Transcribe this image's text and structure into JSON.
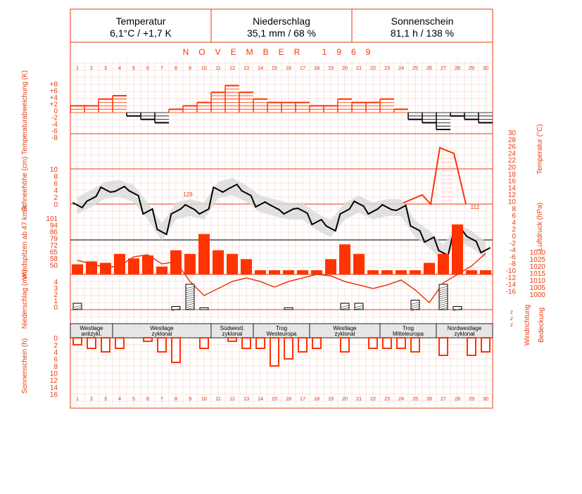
{
  "header": {
    "cells": [
      {
        "title": "Temperatur",
        "value": "6,1°C / +1,7 K"
      },
      {
        "title": "Niederschlag",
        "value": "35,1 mm / 68 %"
      },
      {
        "title": "Sonnenschein",
        "value": "81,1 h / 138 %"
      }
    ]
  },
  "month_title": "NOVEMBER 1969",
  "colors": {
    "accent": "#ff3300",
    "line": "#e83a10",
    "grid": "#f2c8c0",
    "black": "#000000",
    "band": "#d9d9d9"
  },
  "chart_data": {
    "type": "climate-diagram",
    "days": [
      1,
      2,
      3,
      4,
      5,
      6,
      7,
      8,
      9,
      10,
      11,
      12,
      13,
      14,
      15,
      16,
      17,
      18,
      19,
      20,
      21,
      22,
      23,
      24,
      25,
      26,
      27,
      28,
      29,
      30
    ],
    "left_axis_labels": {
      "temp_dev": "Temperaturabweichung (K)",
      "snow": "Schneehöhe (cm)",
      "wind": "Windspitzen ab 47 km/h",
      "precip": "Niederschlag (mm)",
      "sun": "Sonnenschein (h)"
    },
    "right_axis_labels": {
      "temperature": "Temperatur (°C)",
      "pressure": "Luftdruck (hPa)",
      "wind_dir": "Windrichtung",
      "cloud": "Bedeckung"
    },
    "temp_dev_ticks": [
      "+8",
      "+6",
      "+4",
      "+2",
      "0",
      "-2",
      "-4",
      "-6",
      "-8"
    ],
    "snow_ticks": [
      "10",
      "8",
      "6",
      "4",
      "2",
      "0"
    ],
    "wind_ticks": [
      "101",
      "94",
      "86",
      "79",
      "72",
      "65",
      "58",
      "50"
    ],
    "precip_ticks": [
      "4",
      "3",
      "2",
      "1",
      "0"
    ],
    "sun_ticks": [
      "0",
      "2",
      "4",
      "6",
      "8",
      "10",
      "12",
      "14",
      "16"
    ],
    "temp_ticks": [
      "30",
      "28",
      "26",
      "24",
      "22",
      "20",
      "18",
      "16",
      "14",
      "12",
      "10",
      "8",
      "6",
      "4",
      "2",
      "0",
      "-2",
      "-4",
      "-6",
      "-8",
      "-10",
      "-12",
      "-14",
      "-16"
    ],
    "pressure_ticks": [
      "1030",
      "1025",
      "1020",
      "1015",
      "1010",
      "1005",
      "1000"
    ],
    "wind_dir_ticks": [
      "z",
      "z",
      "z"
    ],
    "temp_deviation": [
      2,
      2,
      4,
      5,
      -1,
      -2,
      -3,
      1,
      2,
      3,
      6,
      8,
      6,
      4,
      3,
      3,
      3,
      2,
      2,
      4,
      3,
      3,
      4,
      1,
      -2,
      -3,
      -5,
      -1,
      -2,
      -3
    ],
    "snow_peak_label": "126",
    "snow_label_112": "112",
    "snow_depth_day27_29": [
      null,
      null,
      null,
      null,
      null,
      null,
      null,
      null,
      null,
      null,
      null,
      null,
      null,
      null,
      null,
      null,
      null,
      null,
      null,
      null,
      null,
      null,
      null,
      null,
      0,
      2,
      26,
      24,
      0,
      0
    ],
    "wind_gusts": [
      58,
      62,
      60,
      72,
      66,
      70,
      55,
      77,
      72,
      99,
      77,
      72,
      65,
      50,
      50,
      50,
      50,
      50,
      65,
      85,
      72,
      50,
      50,
      50,
      50,
      60,
      72,
      112,
      50,
      50
    ],
    "precipitation_mm": [
      1,
      0,
      0,
      0,
      0,
      0,
      0,
      0.5,
      4,
      0.3,
      0,
      0,
      0,
      0,
      0,
      0.3,
      0,
      0,
      0,
      1,
      1,
      0,
      0,
      0,
      1.5,
      0,
      4,
      0.5,
      0,
      0
    ],
    "sunshine_h": [
      2,
      3,
      4,
      3,
      0,
      1,
      4,
      7,
      0,
      3,
      0,
      1,
      3,
      3,
      8,
      6,
      4,
      3,
      0,
      4,
      0,
      3,
      3,
      3,
      4,
      0,
      5,
      0,
      5,
      4
    ],
    "weather_types": [
      {
        "label1": "Westlage",
        "label2": "antizykl."
      },
      {
        "label1": "Westlage",
        "label2": "zyklonal"
      },
      {
        "label1": "Südwestl.",
        "label2": "zyklonal"
      },
      {
        "label1": "Trog",
        "label2": "Westeuropa"
      },
      {
        "label1": "Westlage",
        "label2": "zyklonal"
      },
      {
        "label1": "Trog",
        "label2": "Mitteleuropa"
      },
      {
        "label1": "Nordwestlage",
        "label2": "zyklonal"
      }
    ]
  }
}
